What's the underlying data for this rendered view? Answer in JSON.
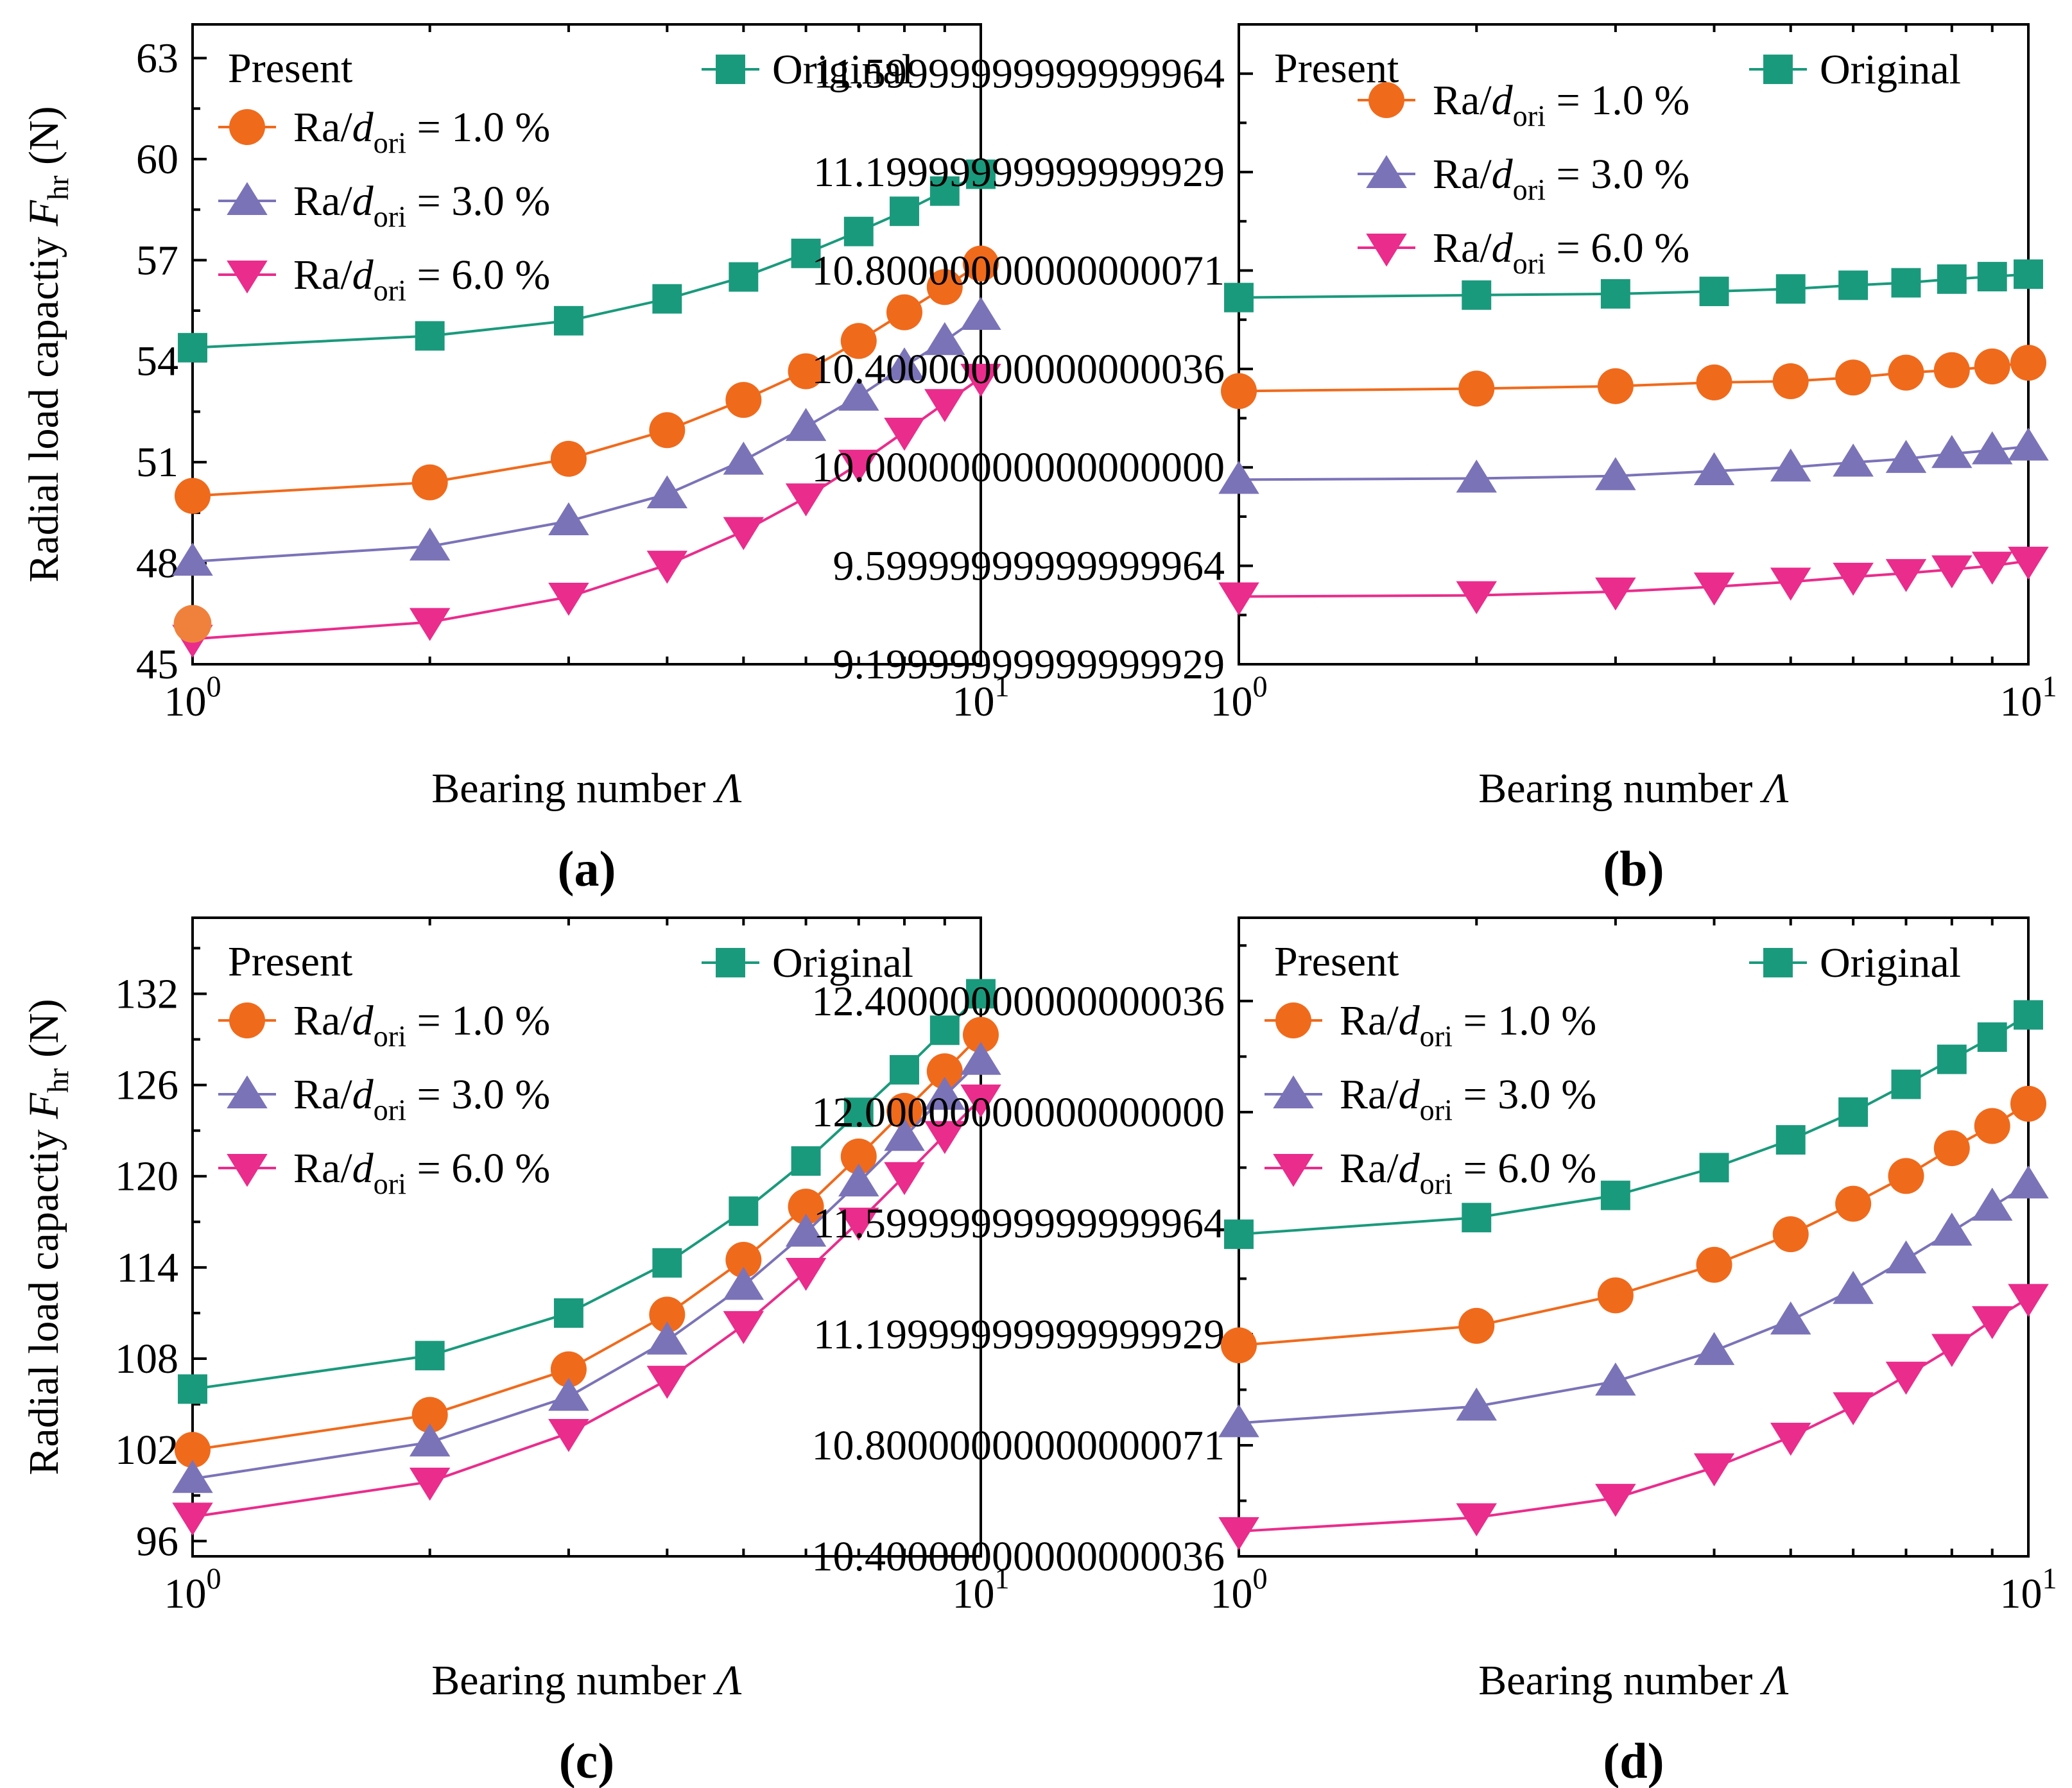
{
  "x_axis": {
    "label_prefix": "Bearing number ",
    "label_symbol": "Λ"
  },
  "y_axis": {
    "label_prefix": "Radial load capactiy ",
    "label_symbol": "F",
    "label_sub": "hr",
    "label_unit": " (N)"
  },
  "legend": {
    "present": "Present",
    "original": "Original",
    "ra_prefix": "Ra/",
    "ra_d": "d",
    "ra_sub": "ori",
    "entries": [
      " = 1.0 %",
      " = 3.0 %",
      " = 6.0 %"
    ]
  },
  "series_styles": [
    {
      "name": "Original",
      "color": "#1a9a7c",
      "marker": "square"
    },
    {
      "name": "Ra/dori = 1.0 %",
      "color": "#f06a1c",
      "marker": "circle"
    },
    {
      "name": "Ra/dori = 3.0 %",
      "color": "#7b73b8",
      "marker": "triangle-up"
    },
    {
      "name": "Ra/dori = 6.0 %",
      "color": "#ea2c8c",
      "marker": "triangle-down"
    }
  ],
  "chart_data": [
    {
      "type": "line",
      "panel_label": "(a)",
      "xscale": "log",
      "xlabel": "Bearing number Λ",
      "ylabel": "Radial load capactiy Fhr (N)",
      "xlim": [
        1,
        10
      ],
      "ylim": [
        45,
        64
      ],
      "yticks": [
        45,
        48,
        51,
        54,
        57,
        60,
        63
      ],
      "x": [
        1,
        2,
        3,
        4,
        5,
        6,
        7,
        8,
        9,
        10
      ],
      "series": [
        {
          "name": "Original",
          "values": [
            54.4,
            54.75,
            55.2,
            55.85,
            56.5,
            57.2,
            57.85,
            58.45,
            59.05,
            59.55
          ]
        },
        {
          "name": "Ra/dori = 1.0 %",
          "values": [
            50.0,
            50.4,
            51.1,
            51.95,
            52.85,
            53.7,
            54.6,
            55.45,
            56.2,
            56.9
          ]
        },
        {
          "name": "Ra/dori = 3.0 %",
          "values": [
            48.05,
            48.5,
            49.25,
            50.05,
            51.05,
            52.05,
            52.95,
            53.85,
            54.6,
            55.35
          ]
        },
        {
          "name": "Ra/dori = 6.0 %",
          "values": [
            45.75,
            46.25,
            47.0,
            47.95,
            48.95,
            49.95,
            50.95,
            51.9,
            52.75,
            53.5
          ]
        }
      ],
      "annotation_point": {
        "x": 1,
        "y": 46.2
      }
    },
    {
      "type": "line",
      "panel_label": "(b)",
      "xscale": "log",
      "xlabel": "Bearing number Λ",
      "ylabel": "",
      "xlim": [
        1,
        10
      ],
      "ylim": [
        9.2,
        11.8
      ],
      "yticks": [
        9.2,
        9.6,
        10.0,
        10.4,
        10.8,
        11.2,
        11.6
      ],
      "x": [
        1,
        2,
        3,
        4,
        5,
        6,
        7,
        8,
        9,
        10
      ],
      "series": [
        {
          "name": "Original",
          "values": [
            10.69,
            10.7,
            10.705,
            10.715,
            10.725,
            10.74,
            10.75,
            10.765,
            10.775,
            10.785
          ]
        },
        {
          "name": "Ra/dori = 1.0 %",
          "values": [
            10.31,
            10.32,
            10.33,
            10.345,
            10.35,
            10.365,
            10.385,
            10.395,
            10.41,
            10.425
          ]
        },
        {
          "name": "Ra/dori = 3.0 %",
          "values": [
            9.95,
            9.955,
            9.965,
            9.985,
            10.0,
            10.02,
            10.035,
            10.055,
            10.07,
            10.085
          ]
        },
        {
          "name": "Ra/dori = 6.0 %",
          "values": [
            9.475,
            9.48,
            9.495,
            9.515,
            9.535,
            9.555,
            9.57,
            9.585,
            9.6,
            9.62
          ]
        }
      ]
    },
    {
      "type": "line",
      "panel_label": "(c)",
      "xscale": "log",
      "xlabel": "Bearing number Λ",
      "ylabel": "Radial load capactiy Fhr (N)",
      "xlim": [
        1,
        10
      ],
      "ylim": [
        95,
        137
      ],
      "yticks": [
        96,
        102,
        108,
        114,
        120,
        126,
        132
      ],
      "x": [
        1,
        2,
        3,
        4,
        5,
        6,
        7,
        8,
        9,
        10
      ],
      "series": [
        {
          "name": "Original",
          "values": [
            106.0,
            108.2,
            111.0,
            114.3,
            117.7,
            121.0,
            124.2,
            127.0,
            129.6,
            132.0
          ]
        },
        {
          "name": "Ra/dori = 1.0 %",
          "values": [
            102.0,
            104.3,
            107.3,
            110.9,
            114.5,
            118.0,
            121.3,
            124.3,
            126.9,
            129.3
          ]
        },
        {
          "name": "Ra/dori = 3.0 %",
          "values": [
            100.1,
            102.5,
            105.5,
            109.2,
            112.8,
            116.3,
            119.6,
            122.6,
            125.3,
            127.6
          ]
        },
        {
          "name": "Ra/dori = 6.0 %",
          "values": [
            97.6,
            99.9,
            103.1,
            106.6,
            110.2,
            113.7,
            117.0,
            120.0,
            122.7,
            125.1
          ]
        }
      ]
    },
    {
      "type": "line",
      "panel_label": "(d)",
      "xscale": "log",
      "xlabel": "Bearing number Λ",
      "ylabel": "",
      "xlim": [
        1,
        10
      ],
      "ylim": [
        10.4,
        12.7
      ],
      "yticks": [
        10.4,
        10.8,
        11.2,
        11.6,
        12.0,
        12.4
      ],
      "x": [
        1,
        2,
        3,
        4,
        5,
        6,
        7,
        8,
        9,
        10
      ],
      "series": [
        {
          "name": "Original",
          "values": [
            11.56,
            11.62,
            11.7,
            11.8,
            11.9,
            12.0,
            12.1,
            12.19,
            12.27,
            12.35
          ]
        },
        {
          "name": "Ra/dori = 1.0 %",
          "values": [
            11.16,
            11.23,
            11.34,
            11.45,
            11.56,
            11.67,
            11.77,
            11.87,
            11.95,
            12.03
          ]
        },
        {
          "name": "Ra/dori = 3.0 %",
          "values": [
            10.88,
            10.94,
            11.03,
            11.14,
            11.25,
            11.36,
            11.47,
            11.57,
            11.66,
            11.74
          ]
        },
        {
          "name": "Ra/dori = 6.0 %",
          "values": [
            10.49,
            10.54,
            10.61,
            10.72,
            10.83,
            10.94,
            11.05,
            11.15,
            11.25,
            11.33
          ]
        }
      ]
    }
  ]
}
